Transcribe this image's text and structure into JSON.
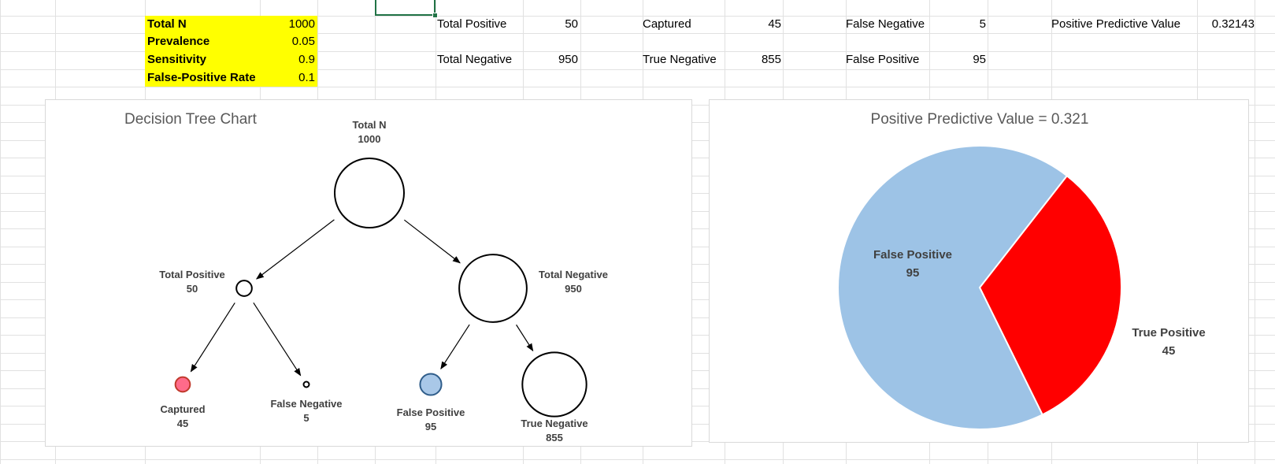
{
  "inputs": [
    {
      "label": "Total N",
      "value": "1000"
    },
    {
      "label": "Prevalence",
      "value": "0.05"
    },
    {
      "label": "Sensitivity",
      "value": "0.9"
    },
    {
      "label": "False-Positive Rate",
      "value": "0.1"
    }
  ],
  "summary": {
    "total_positive_label": "Total Positive",
    "total_positive_value": "50",
    "captured_label": "Captured",
    "captured_value": "45",
    "false_negative_label": "False Negative",
    "false_negative_value": "5",
    "ppv_label": "Positive Predictive Value",
    "ppv_value": "0.32143",
    "total_negative_label": "Total Negative",
    "total_negative_value": "950",
    "true_negative_label": "True Negative",
    "true_negative_value": "855",
    "false_positive_label": "False Positive",
    "false_positive_value": "95"
  },
  "chart_data": [
    {
      "type": "diagram",
      "title": "Decision Tree Chart",
      "nodes": [
        {
          "id": "total",
          "label": "Total N",
          "value": 1000,
          "color": "#ffffff"
        },
        {
          "id": "pos",
          "label": "Total Positive",
          "value": 50,
          "color": "#ffffff"
        },
        {
          "id": "neg",
          "label": "Total Negative",
          "value": 950,
          "color": "#ffffff"
        },
        {
          "id": "cap",
          "label": "Captured",
          "value": 45,
          "color": "#ff6b8a"
        },
        {
          "id": "fn",
          "label": "False Negative",
          "value": 5,
          "color": "#ffffff"
        },
        {
          "id": "fp",
          "label": "False Positive",
          "value": 95,
          "color": "#a9c8e8"
        },
        {
          "id": "tn",
          "label": "True Negative",
          "value": 855,
          "color": "#ffffff"
        }
      ],
      "edges": [
        [
          "total",
          "pos"
        ],
        [
          "total",
          "neg"
        ],
        [
          "pos",
          "cap"
        ],
        [
          "pos",
          "fn"
        ],
        [
          "neg",
          "fp"
        ],
        [
          "neg",
          "tn"
        ]
      ]
    },
    {
      "type": "pie",
      "title": "Positive Predictive Value = 0.321",
      "slices": [
        {
          "label": "True Positive",
          "value": 45,
          "color": "#ff0000"
        },
        {
          "label": "False Positive",
          "value": 95,
          "color": "#9dc3e6"
        }
      ]
    }
  ]
}
